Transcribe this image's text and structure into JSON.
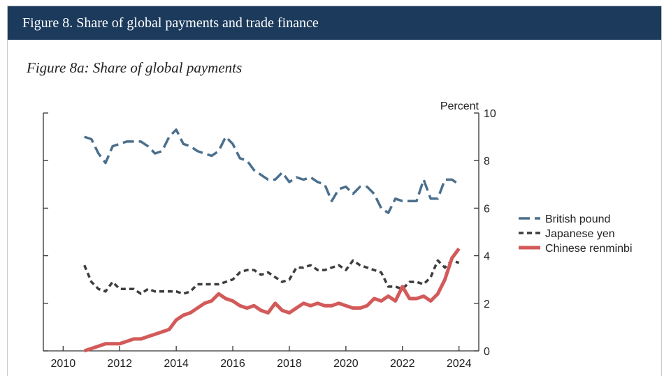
{
  "header": {
    "title": "Figure 8. Share of global payments and trade finance"
  },
  "chart_data": {
    "type": "line",
    "title": "Figure 8a: Share of global payments",
    "ylabel": "Percent",
    "xlim": [
      2009.3,
      2024.7
    ],
    "ylim": [
      0,
      10
    ],
    "xticks": [
      2010,
      2012,
      2014,
      2016,
      2018,
      2020,
      2022,
      2024
    ],
    "yticks": [
      0,
      2,
      4,
      6,
      8,
      10
    ],
    "legend_position": "right",
    "grid": false,
    "series": [
      {
        "name": "British pound",
        "color": "#4b6f8c",
        "dash": "16,7",
        "x": [
          2010.75,
          2011.0,
          2011.25,
          2011.5,
          2011.75,
          2012.0,
          2012.25,
          2012.5,
          2012.75,
          2013.0,
          2013.25,
          2013.5,
          2013.75,
          2014.0,
          2014.25,
          2014.5,
          2014.75,
          2015.0,
          2015.25,
          2015.5,
          2015.75,
          2016.0,
          2016.25,
          2016.5,
          2016.75,
          2017.0,
          2017.25,
          2017.5,
          2017.75,
          2018.0,
          2018.25,
          2018.5,
          2018.75,
          2019.0,
          2019.25,
          2019.5,
          2019.75,
          2020.0,
          2020.25,
          2020.5,
          2020.75,
          2021.0,
          2021.25,
          2021.5,
          2021.75,
          2022.0,
          2022.25,
          2022.5,
          2022.75,
          2023.0,
          2023.25,
          2023.5,
          2023.75,
          2024.0
        ],
        "y": [
          9.0,
          8.9,
          8.3,
          7.9,
          8.6,
          8.7,
          8.8,
          8.8,
          8.8,
          8.6,
          8.3,
          8.4,
          9.0,
          9.3,
          8.7,
          8.6,
          8.4,
          8.3,
          8.2,
          8.4,
          9.0,
          8.7,
          8.1,
          8.0,
          7.6,
          7.4,
          7.2,
          7.2,
          7.5,
          7.1,
          7.3,
          7.2,
          7.3,
          7.1,
          7.0,
          6.3,
          6.8,
          6.9,
          6.6,
          6.9,
          6.9,
          6.6,
          6.0,
          5.8,
          6.4,
          6.3,
          6.3,
          6.3,
          7.2,
          6.4,
          6.4,
          7.2,
          7.2,
          7.0
        ]
      },
      {
        "name": "Japanese yen",
        "color": "#3d3d3d",
        "dash": "7,5",
        "x": [
          2010.75,
          2011.0,
          2011.25,
          2011.5,
          2011.75,
          2012.0,
          2012.25,
          2012.5,
          2012.75,
          2013.0,
          2013.25,
          2013.5,
          2013.75,
          2014.0,
          2014.25,
          2014.5,
          2014.75,
          2015.0,
          2015.25,
          2015.5,
          2015.75,
          2016.0,
          2016.25,
          2016.5,
          2016.75,
          2017.0,
          2017.25,
          2017.5,
          2017.75,
          2018.0,
          2018.25,
          2018.5,
          2018.75,
          2019.0,
          2019.25,
          2019.5,
          2019.75,
          2020.0,
          2020.25,
          2020.5,
          2020.75,
          2021.0,
          2021.25,
          2021.5,
          2021.75,
          2022.0,
          2022.25,
          2022.5,
          2022.75,
          2023.0,
          2023.25,
          2023.5,
          2023.75,
          2024.0
        ],
        "y": [
          3.6,
          2.9,
          2.6,
          2.5,
          2.9,
          2.6,
          2.6,
          2.6,
          2.4,
          2.6,
          2.5,
          2.5,
          2.5,
          2.5,
          2.4,
          2.5,
          2.8,
          2.8,
          2.8,
          2.8,
          2.9,
          3.0,
          3.3,
          3.4,
          3.4,
          3.2,
          3.3,
          3.1,
          2.9,
          3.0,
          3.5,
          3.5,
          3.6,
          3.4,
          3.4,
          3.5,
          3.6,
          3.4,
          3.8,
          3.6,
          3.5,
          3.4,
          3.3,
          2.7,
          2.7,
          2.6,
          2.9,
          2.9,
          2.8,
          3.1,
          3.8,
          3.5,
          3.8,
          3.7
        ]
      },
      {
        "name": "Chinese renminbi",
        "color": "#d35a5a",
        "dash": "",
        "x": [
          2010.75,
          2011.0,
          2011.25,
          2011.5,
          2011.75,
          2012.0,
          2012.25,
          2012.5,
          2012.75,
          2013.0,
          2013.25,
          2013.5,
          2013.75,
          2014.0,
          2014.25,
          2014.5,
          2014.75,
          2015.0,
          2015.25,
          2015.5,
          2015.75,
          2016.0,
          2016.25,
          2016.5,
          2016.75,
          2017.0,
          2017.25,
          2017.5,
          2017.75,
          2018.0,
          2018.25,
          2018.5,
          2018.75,
          2019.0,
          2019.25,
          2019.5,
          2019.75,
          2020.0,
          2020.25,
          2020.5,
          2020.75,
          2021.0,
          2021.25,
          2021.5,
          2021.75,
          2022.0,
          2022.25,
          2022.5,
          2022.75,
          2023.0,
          2023.25,
          2023.5,
          2023.75,
          2024.0
        ],
        "y": [
          0.0,
          0.1,
          0.2,
          0.3,
          0.3,
          0.3,
          0.4,
          0.5,
          0.5,
          0.6,
          0.7,
          0.8,
          0.9,
          1.3,
          1.5,
          1.6,
          1.8,
          2.0,
          2.1,
          2.4,
          2.2,
          2.1,
          1.9,
          1.8,
          1.9,
          1.7,
          1.6,
          2.0,
          1.7,
          1.6,
          1.8,
          2.0,
          1.9,
          2.0,
          1.9,
          1.9,
          2.0,
          1.9,
          1.8,
          1.8,
          1.9,
          2.2,
          2.1,
          2.3,
          2.1,
          2.7,
          2.2,
          2.2,
          2.3,
          2.1,
          2.4,
          3.0,
          3.9,
          4.3
        ]
      }
    ]
  }
}
